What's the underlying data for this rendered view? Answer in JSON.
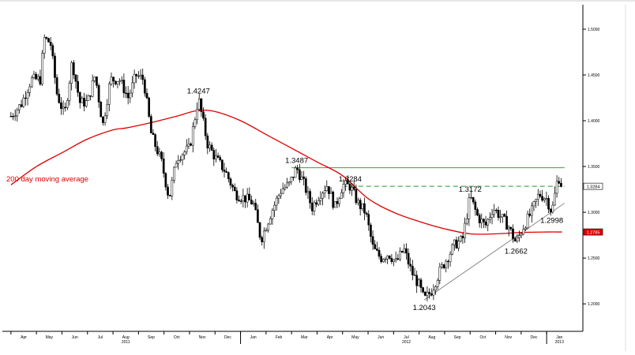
{
  "chart_data": {
    "type": "candlestick",
    "title": "",
    "xlabel": "",
    "ylabel": "",
    "ylim": [
      1.17,
      1.5215
    ],
    "y_ticks": [
      1.2,
      1.25,
      1.3,
      1.35,
      1.4,
      1.45,
      1.5
    ],
    "y_tick_labels": [
      "1.2000",
      "1.2500",
      "1.3000",
      "1.3500",
      "1.4000",
      "1.4500",
      "1.5000"
    ],
    "month_labels": [
      {
        "month": "Apr",
        "m": 3.5
      },
      {
        "month": "May",
        "m": 4.5
      },
      {
        "month": "Jun",
        "m": 5.5
      },
      {
        "month": "Jul",
        "m": 6.5
      },
      {
        "month": "Aug",
        "m": 7.5
      },
      {
        "month": "Sep",
        "m": 8.5
      },
      {
        "month": "Oct",
        "m": 9.5
      },
      {
        "month": "Nov",
        "m": 10.5
      },
      {
        "month": "Dec",
        "m": 11.5
      },
      {
        "month": "Jan",
        "m": 12.5
      },
      {
        "month": "Feb",
        "m": 13.5
      },
      {
        "month": "Mar",
        "m": 14.5
      },
      {
        "month": "Apr",
        "m": 15.5
      },
      {
        "month": "May",
        "m": 16.5
      },
      {
        "month": "Jun",
        "m": 17.5
      },
      {
        "month": "Jul",
        "m": 18.5
      },
      {
        "month": "Aug",
        "m": 19.5
      },
      {
        "month": "Sep",
        "m": 20.5
      },
      {
        "month": "Oct",
        "m": 21.5
      },
      {
        "month": "Nov",
        "m": 22.5
      },
      {
        "month": "Dec",
        "m": 23.5
      },
      {
        "month": "Jan",
        "m": 24.5
      }
    ],
    "year_labels": [
      {
        "year": "2011",
        "m": 7.5
      },
      {
        "year": "2012",
        "m": 18.5
      },
      {
        "year": "2013",
        "m": 24.5
      }
    ],
    "price_path": [
      [
        3.0,
        1.405
      ],
      [
        3.4,
        1.418
      ],
      [
        3.8,
        1.445
      ],
      [
        4.15,
        1.445
      ],
      [
        4.3,
        1.49
      ],
      [
        4.55,
        1.485
      ],
      [
        4.8,
        1.43
      ],
      [
        5.1,
        1.405
      ],
      [
        5.4,
        1.465
      ],
      [
        5.7,
        1.42
      ],
      [
        6.0,
        1.42
      ],
      [
        6.3,
        1.45
      ],
      [
        6.6,
        1.395
      ],
      [
        6.9,
        1.445
      ],
      [
        7.25,
        1.445
      ],
      [
        7.6,
        1.425
      ],
      [
        7.9,
        1.45
      ],
      [
        8.2,
        1.445
      ],
      [
        8.5,
        1.385
      ],
      [
        8.9,
        1.355
      ],
      [
        9.2,
        1.315
      ],
      [
        9.5,
        1.36
      ],
      [
        10.0,
        1.37
      ],
      [
        10.35,
        1.4247
      ],
      [
        10.7,
        1.375
      ],
      [
        11.0,
        1.36
      ],
      [
        11.4,
        1.345
      ],
      [
        11.8,
        1.32
      ],
      [
        12.2,
        1.315
      ],
      [
        12.5,
        1.31
      ],
      [
        12.8,
        1.27
      ],
      [
        13.2,
        1.3
      ],
      [
        13.6,
        1.325
      ],
      [
        13.9,
        1.33
      ],
      [
        14.2,
        1.3487
      ],
      [
        14.5,
        1.33
      ],
      [
        14.8,
        1.305
      ],
      [
        15.1,
        1.32
      ],
      [
        15.4,
        1.33
      ],
      [
        15.7,
        1.305
      ],
      [
        16.0,
        1.33
      ],
      [
        16.3,
        1.3284
      ],
      [
        16.6,
        1.31
      ],
      [
        16.9,
        1.3
      ],
      [
        17.2,
        1.26
      ],
      [
        17.5,
        1.25
      ],
      [
        17.8,
        1.255
      ],
      [
        18.1,
        1.245
      ],
      [
        18.4,
        1.26
      ],
      [
        18.7,
        1.235
      ],
      [
        19.0,
        1.22
      ],
      [
        19.2,
        1.2043
      ],
      [
        19.5,
        1.215
      ],
      [
        19.8,
        1.235
      ],
      [
        20.1,
        1.25
      ],
      [
        20.4,
        1.265
      ],
      [
        20.7,
        1.27
      ],
      [
        21.0,
        1.3172
      ],
      [
        21.3,
        1.295
      ],
      [
        21.6,
        1.285
      ],
      [
        21.9,
        1.305
      ],
      [
        22.2,
        1.295
      ],
      [
        22.5,
        1.285
      ],
      [
        22.8,
        1.2662
      ],
      [
        23.1,
        1.285
      ],
      [
        23.4,
        1.3
      ],
      [
        23.7,
        1.32
      ],
      [
        24.0,
        1.315
      ],
      [
        24.2,
        1.2998
      ],
      [
        24.45,
        1.34
      ],
      [
        24.6,
        1.3284
      ]
    ],
    "moving_average_200d": [
      [
        3.0,
        1.33
      ],
      [
        4.0,
        1.35
      ],
      [
        5.0,
        1.365
      ],
      [
        6.0,
        1.38
      ],
      [
        7.0,
        1.39
      ],
      [
        7.5,
        1.392
      ],
      [
        8.5,
        1.398
      ],
      [
        9.5,
        1.405
      ],
      [
        10.3,
        1.411
      ],
      [
        11.0,
        1.41
      ],
      [
        12.0,
        1.4
      ],
      [
        13.0,
        1.385
      ],
      [
        14.0,
        1.37
      ],
      [
        15.0,
        1.355
      ],
      [
        16.0,
        1.34
      ],
      [
        17.0,
        1.315
      ],
      [
        18.0,
        1.3
      ],
      [
        19.0,
        1.29
      ],
      [
        20.0,
        1.282
      ],
      [
        21.0,
        1.2765
      ],
      [
        22.0,
        1.2765
      ],
      [
        23.0,
        1.278
      ],
      [
        24.0,
        1.2785
      ],
      [
        24.6,
        1.2785
      ]
    ],
    "levels": [
      {
        "name": "resistance-solid",
        "value": 1.3487,
        "from": 14.0,
        "to": 24.7,
        "color": "#4caf50",
        "dashed": false
      },
      {
        "name": "resistance-dashed",
        "value": 1.3284,
        "from": 16.0,
        "to": 24.7,
        "color": "#4caf50",
        "dashed": true
      }
    ],
    "trendline": {
      "from": [
        19.2,
        1.2043
      ],
      "to": [
        24.7,
        1.31
      ],
      "color": "#8a8a8a"
    },
    "annotations": [
      {
        "text": "1.4247",
        "m": 10.35,
        "y": 1.4247,
        "pos": "above"
      },
      {
        "text": "1.3487",
        "m": 14.2,
        "y": 1.3487,
        "pos": "above"
      },
      {
        "text": "1.3284",
        "m": 16.3,
        "y": 1.3284,
        "pos": "above"
      },
      {
        "text": "1.3172",
        "m": 21.0,
        "y": 1.3172,
        "pos": "above"
      },
      {
        "text": "1.2043",
        "m": 19.2,
        "y": 1.2043,
        "pos": "below"
      },
      {
        "text": "1.2662",
        "m": 22.8,
        "y": 1.2662,
        "pos": "below"
      },
      {
        "text": "1.2998",
        "m": 24.2,
        "y": 1.2998,
        "pos": "below"
      }
    ],
    "series_label": {
      "text": "200 day moving average",
      "color": "#e00000"
    },
    "last_value_tags": [
      {
        "text": "1.3284",
        "value": 1.3284,
        "bg": "#ffffff",
        "fg": "#000000"
      },
      {
        "text": "1.2785",
        "value": 1.2785,
        "bg": "#e00000",
        "fg": "#ffffff"
      }
    ],
    "colors": {
      "price": "#000000",
      "moving_average": "#e00000",
      "axis": "#000000"
    },
    "grid": false,
    "legend": "none"
  }
}
